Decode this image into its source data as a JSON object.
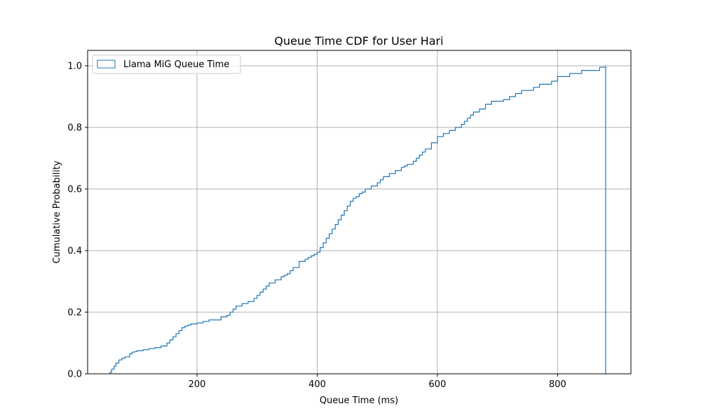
{
  "chart_data": {
    "type": "line",
    "step": "cdf-histogram",
    "title": "Queue Time CDF for User Hari",
    "xlabel": "Queue Time (ms)",
    "ylabel": "Cumulative Probability",
    "xlim": [
      18,
      922
    ],
    "ylim": [
      0.0,
      1.05
    ],
    "xticks": [
      200,
      400,
      600,
      800
    ],
    "xtick_labels": [
      "200",
      "400",
      "600",
      "800"
    ],
    "yticks": [
      0.0,
      0.2,
      0.4,
      0.6,
      0.8,
      1.0
    ],
    "ytick_labels": [
      "0.0",
      "0.2",
      "0.4",
      "0.6",
      "0.8",
      "1.0"
    ],
    "grid": true,
    "legend_position": "upper-left",
    "series": [
      {
        "name": "Llama MiG Queue Time",
        "color": "#1f77b4",
        "x": [
          55,
          58,
          62,
          65,
          70,
          75,
          80,
          88,
          92,
          96,
          100,
          110,
          120,
          130,
          140,
          150,
          155,
          160,
          165,
          170,
          175,
          180,
          185,
          190,
          200,
          210,
          220,
          240,
          250,
          255,
          260,
          265,
          275,
          285,
          295,
          300,
          305,
          310,
          315,
          320,
          330,
          340,
          345,
          350,
          355,
          360,
          370,
          380,
          385,
          390,
          395,
          400,
          405,
          410,
          415,
          420,
          425,
          430,
          435,
          440,
          445,
          450,
          455,
          460,
          465,
          470,
          475,
          480,
          490,
          500,
          505,
          510,
          520,
          530,
          540,
          545,
          550,
          560,
          565,
          570,
          575,
          580,
          590,
          600,
          610,
          620,
          630,
          640,
          645,
          650,
          655,
          660,
          670,
          680,
          690,
          710,
          720,
          730,
          740,
          760,
          770,
          790,
          800,
          820,
          840,
          870,
          880
        ],
        "y": [
          0.005,
          0.015,
          0.025,
          0.035,
          0.045,
          0.05,
          0.055,
          0.065,
          0.07,
          0.072,
          0.075,
          0.078,
          0.082,
          0.085,
          0.09,
          0.1,
          0.11,
          0.12,
          0.13,
          0.14,
          0.15,
          0.155,
          0.158,
          0.162,
          0.165,
          0.17,
          0.175,
          0.185,
          0.19,
          0.2,
          0.21,
          0.22,
          0.228,
          0.235,
          0.245,
          0.255,
          0.265,
          0.275,
          0.285,
          0.295,
          0.305,
          0.315,
          0.32,
          0.325,
          0.335,
          0.345,
          0.365,
          0.372,
          0.378,
          0.383,
          0.388,
          0.395,
          0.41,
          0.425,
          0.44,
          0.455,
          0.47,
          0.485,
          0.5,
          0.515,
          0.53,
          0.545,
          0.56,
          0.57,
          0.575,
          0.585,
          0.59,
          0.6,
          0.61,
          0.62,
          0.63,
          0.64,
          0.65,
          0.66,
          0.67,
          0.675,
          0.68,
          0.69,
          0.7,
          0.71,
          0.72,
          0.73,
          0.75,
          0.77,
          0.78,
          0.79,
          0.8,
          0.81,
          0.82,
          0.83,
          0.84,
          0.85,
          0.86,
          0.875,
          0.885,
          0.89,
          0.9,
          0.91,
          0.92,
          0.93,
          0.94,
          0.95,
          0.965,
          0.975,
          0.985,
          0.995,
          1.0
        ]
      }
    ]
  }
}
